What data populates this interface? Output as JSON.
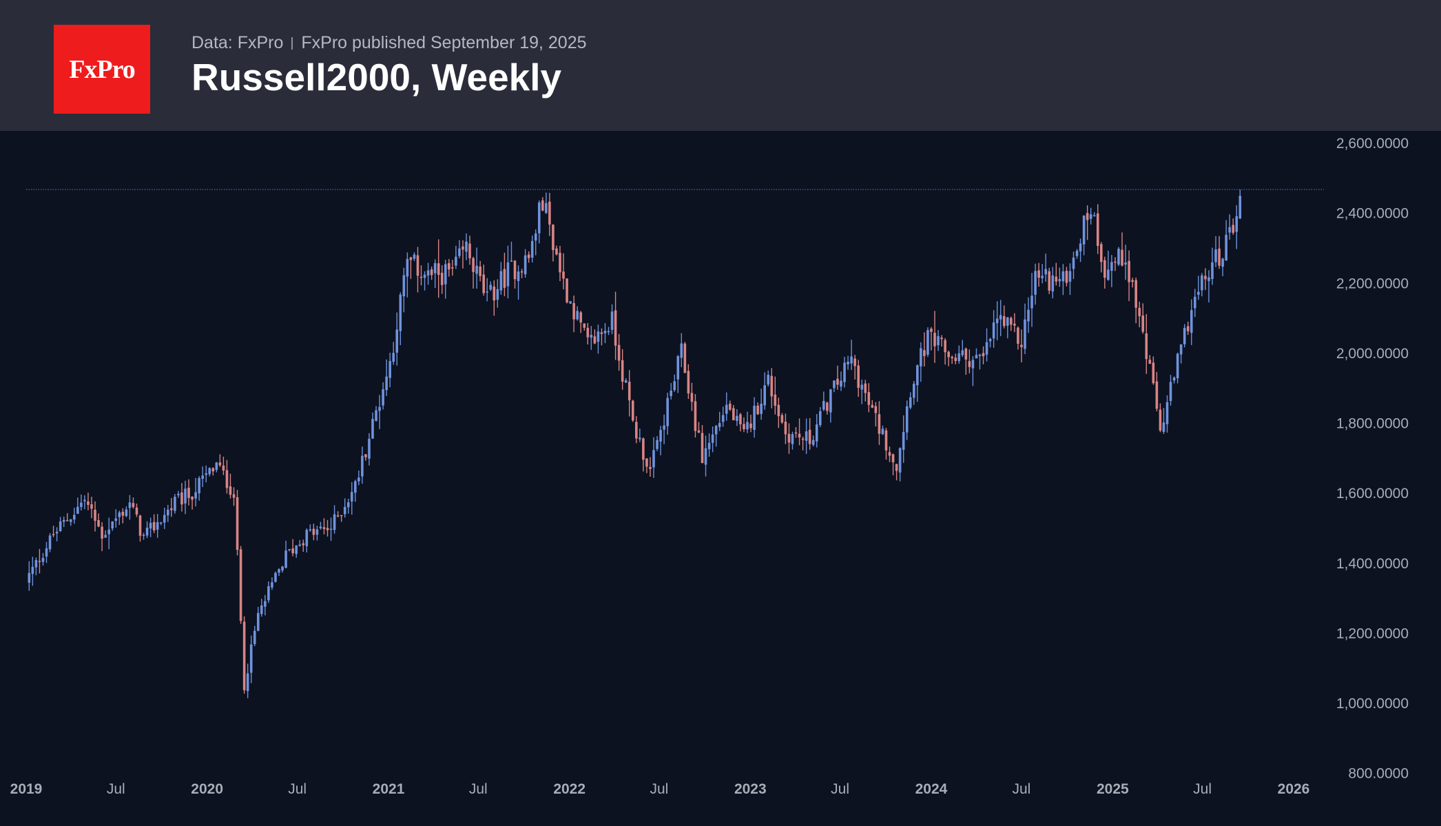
{
  "header": {
    "logo_text": "FxPro",
    "data_source": "Data: FxPro",
    "published": "FxPro published September 19, 2025",
    "title": "Russell2000, Weekly"
  },
  "colors": {
    "background": "#0c1220",
    "header_bg": "#2a2d39",
    "logo_bg": "#ee1c1c",
    "up": "#6f93dd",
    "down": "#d98585",
    "axis_text": "#a9adb8",
    "reference_line": "#4a6b9c"
  },
  "chart_data": {
    "type": "candlestick",
    "title": "Russell2000, Weekly",
    "interval": "weekly",
    "reference_line": 2466,
    "ylim": [
      800,
      2650
    ],
    "y_ticks": [
      "2,600.0000",
      "2,400.0000",
      "2,200.0000",
      "2,000.0000",
      "1,800.0000",
      "1,600.0000",
      "1,400.0000",
      "1,200.0000",
      "1,000.0000",
      "800.0000"
    ],
    "y_tick_values": [
      2600,
      2400,
      2200,
      2000,
      1800,
      1600,
      1400,
      1200,
      1000,
      800
    ],
    "x_ticks": [
      "2019",
      "Jul",
      "2020",
      "Jul",
      "2021",
      "Jul",
      "2022",
      "Jul",
      "2023",
      "Jul",
      "2024",
      "Jul",
      "2025",
      "Jul",
      "2026"
    ],
    "x_tick_dates": [
      "2019-01-01",
      "2019-07-01",
      "2020-01-01",
      "2020-07-01",
      "2021-01-01",
      "2021-07-01",
      "2022-01-01",
      "2022-07-01",
      "2023-01-01",
      "2023-07-01",
      "2024-01-01",
      "2024-07-01",
      "2025-01-01",
      "2025-07-01",
      "2026-01-01"
    ],
    "x_range": [
      "2019-01-01",
      "2026-03-15"
    ],
    "path_dates": [
      "2019-01-01",
      "2019-02-25",
      "2019-04-29",
      "2019-06-03",
      "2019-07-29",
      "2019-08-26",
      "2019-10-28",
      "2019-12-02",
      "2020-01-20",
      "2020-02-24",
      "2020-03-16",
      "2020-04-13",
      "2020-06-08",
      "2020-07-20",
      "2020-09-07",
      "2020-10-26",
      "2020-11-23",
      "2021-01-04",
      "2021-02-08",
      "2021-03-22",
      "2021-05-10",
      "2021-06-07",
      "2021-07-19",
      "2021-08-30",
      "2021-10-11",
      "2021-11-08",
      "2021-12-20",
      "2022-02-07",
      "2022-03-28",
      "2022-05-09",
      "2022-06-13",
      "2022-08-15",
      "2022-09-26",
      "2022-11-14",
      "2022-12-19",
      "2023-02-06",
      "2023-03-13",
      "2023-05-01",
      "2023-06-12",
      "2023-07-24",
      "2023-08-28",
      "2023-10-23",
      "2023-11-20",
      "2023-12-25",
      "2024-02-12",
      "2024-04-15",
      "2024-05-13",
      "2024-07-01",
      "2024-07-29",
      "2024-09-23",
      "2024-11-18",
      "2024-12-16",
      "2025-01-27",
      "2025-03-03",
      "2025-04-07",
      "2025-04-21",
      "2025-06-09",
      "2025-07-21",
      "2025-08-18",
      "2025-09-15"
    ],
    "path_closes": [
      1350,
      1480,
      1580,
      1480,
      1570,
      1470,
      1570,
      1600,
      1680,
      1600,
      1050,
      1250,
      1420,
      1480,
      1500,
      1620,
      1760,
      1970,
      2260,
      2220,
      2230,
      2300,
      2150,
      2230,
      2270,
      2440,
      2200,
      2020,
      2090,
      1800,
      1660,
      2000,
      1700,
      1850,
      1760,
      1920,
      1770,
      1750,
      1880,
      1980,
      1850,
      1680,
      1900,
      2040,
      1990,
      1980,
      2100,
      2030,
      2220,
      2200,
      2420,
      2240,
      2280,
      2050,
      1780,
      1850,
      2130,
      2250,
      2310,
      2440
    ],
    "last_close": 2448,
    "last_high": 2466
  }
}
